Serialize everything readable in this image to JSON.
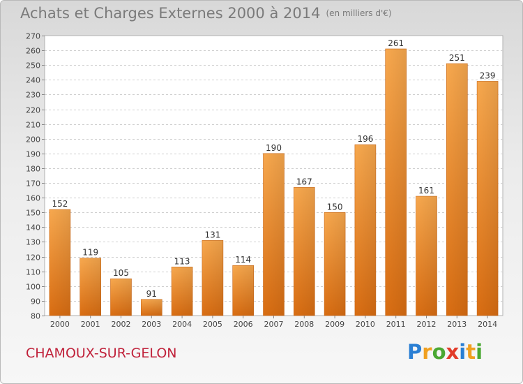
{
  "header": {
    "title": "Achats et Charges Externes 2000 à 2014",
    "unit": "(en milliers d'€)"
  },
  "footer": {
    "city": "CHAMOUX-SUR-GELON",
    "logo_letters": [
      "P",
      "r",
      "o",
      "x",
      "i",
      "t",
      "i"
    ],
    "logo_colors": [
      "#2a7fd4",
      "#f0a020",
      "#4aa832",
      "#e23c2a",
      "#2a7fd4",
      "#f0a020",
      "#4aa832"
    ]
  },
  "chart_data": {
    "type": "bar",
    "categories": [
      "2000",
      "2001",
      "2002",
      "2003",
      "2004",
      "2005",
      "2006",
      "2007",
      "2008",
      "2009",
      "2010",
      "2011",
      "2012",
      "2013",
      "2014"
    ],
    "values": [
      152,
      119,
      105,
      91,
      113,
      131,
      114,
      190,
      167,
      150,
      196,
      261,
      161,
      251,
      239
    ],
    "ylim": [
      80,
      270
    ],
    "yticks": [
      80,
      90,
      100,
      110,
      120,
      130,
      140,
      150,
      160,
      170,
      180,
      190,
      200,
      210,
      220,
      230,
      240,
      250,
      260,
      270
    ],
    "grid": true,
    "bar_color": "#f2a04c"
  }
}
